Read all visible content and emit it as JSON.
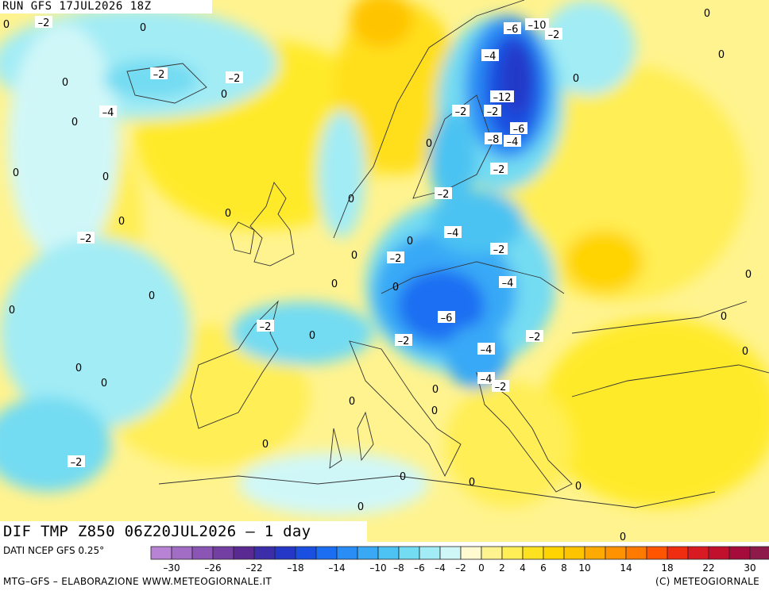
{
  "header": {
    "run_label": "RUN GFS 17JUL2026 18Z"
  },
  "map": {
    "title": "DIF TMP Z850 06Z20JUL2026 – 1 day",
    "contour_labels": [
      {
        "text": "0"
      },
      {
        "text": "-2"
      },
      {
        "text": "0"
      },
      {
        "text": "0"
      },
      {
        "text": "-2"
      },
      {
        "text": "-2"
      },
      {
        "text": "0"
      },
      {
        "text": "0"
      },
      {
        "text": "-4"
      },
      {
        "text": "0"
      },
      {
        "text": "0"
      },
      {
        "text": "0"
      },
      {
        "text": "0"
      },
      {
        "text": "0"
      },
      {
        "text": "0"
      },
      {
        "text": "0"
      },
      {
        "text": "0"
      },
      {
        "text": "-2"
      },
      {
        "text": "-2"
      },
      {
        "text": "0"
      },
      {
        "text": "0"
      },
      {
        "text": "0"
      },
      {
        "text": "0"
      },
      {
        "text": "0"
      },
      {
        "text": "0"
      },
      {
        "text": "0"
      },
      {
        "text": "0"
      },
      {
        "text": "-2"
      },
      {
        "text": "0"
      },
      {
        "text": "0"
      },
      {
        "text": "0"
      },
      {
        "text": "0"
      },
      {
        "text": "-2"
      },
      {
        "text": "-4"
      },
      {
        "text": "-6"
      },
      {
        "text": "-2"
      },
      {
        "text": "-4"
      },
      {
        "text": "-4"
      },
      {
        "text": "-2"
      },
      {
        "text": "-4"
      },
      {
        "text": "-2"
      },
      {
        "text": "-2"
      },
      {
        "text": "0"
      },
      {
        "text": "-2"
      },
      {
        "text": "-2"
      },
      {
        "text": "0"
      },
      {
        "text": "-6"
      },
      {
        "text": "-10"
      },
      {
        "text": "-2"
      },
      {
        "text": "-4"
      },
      {
        "text": "-12"
      },
      {
        "text": "-2"
      },
      {
        "text": "-6"
      },
      {
        "text": "-8"
      },
      {
        "text": "-4"
      },
      {
        "text": "-2"
      },
      {
        "text": "0"
      },
      {
        "text": "0"
      },
      {
        "text": "0"
      },
      {
        "text": "0"
      },
      {
        "text": "0"
      },
      {
        "text": "0"
      },
      {
        "text": "0"
      },
      {
        "text": "0"
      }
    ]
  },
  "legend": {
    "source_text": "DATI NCEP GFS 0.25°",
    "tick_labels": [
      "-30",
      "-26",
      "-22",
      "-18",
      "-14",
      "-10",
      "-8",
      "-6",
      "-4",
      "-2",
      "0",
      "2",
      "4",
      "6",
      "8",
      "10",
      "14",
      "18",
      "22",
      "30"
    ],
    "colors": [
      "#b983d5",
      "#a26ec5",
      "#8a55b4",
      "#733fa2",
      "#5a2a92",
      "#3b2ea8",
      "#2437c6",
      "#1a4fe0",
      "#1b6ef2",
      "#2a8df6",
      "#39a9f6",
      "#4cc3f2",
      "#73dbf2",
      "#a2ecf5",
      "#d0f7f8",
      "#fffad0",
      "#fff38f",
      "#ffee55",
      "#ffe21f",
      "#ffd400",
      "#ffc400",
      "#ffaa00",
      "#ff9200",
      "#ff7a00",
      "#ff5500",
      "#f02d10",
      "#d81b23",
      "#c0102e",
      "#a50b3b",
      "#8d1a4b"
    ]
  },
  "footer": {
    "credit_left": "MTG–GFS – ELABORAZIONE WWW.METEOGIORNALE.IT",
    "credit_right": "(C) METEOGIORNALE"
  }
}
